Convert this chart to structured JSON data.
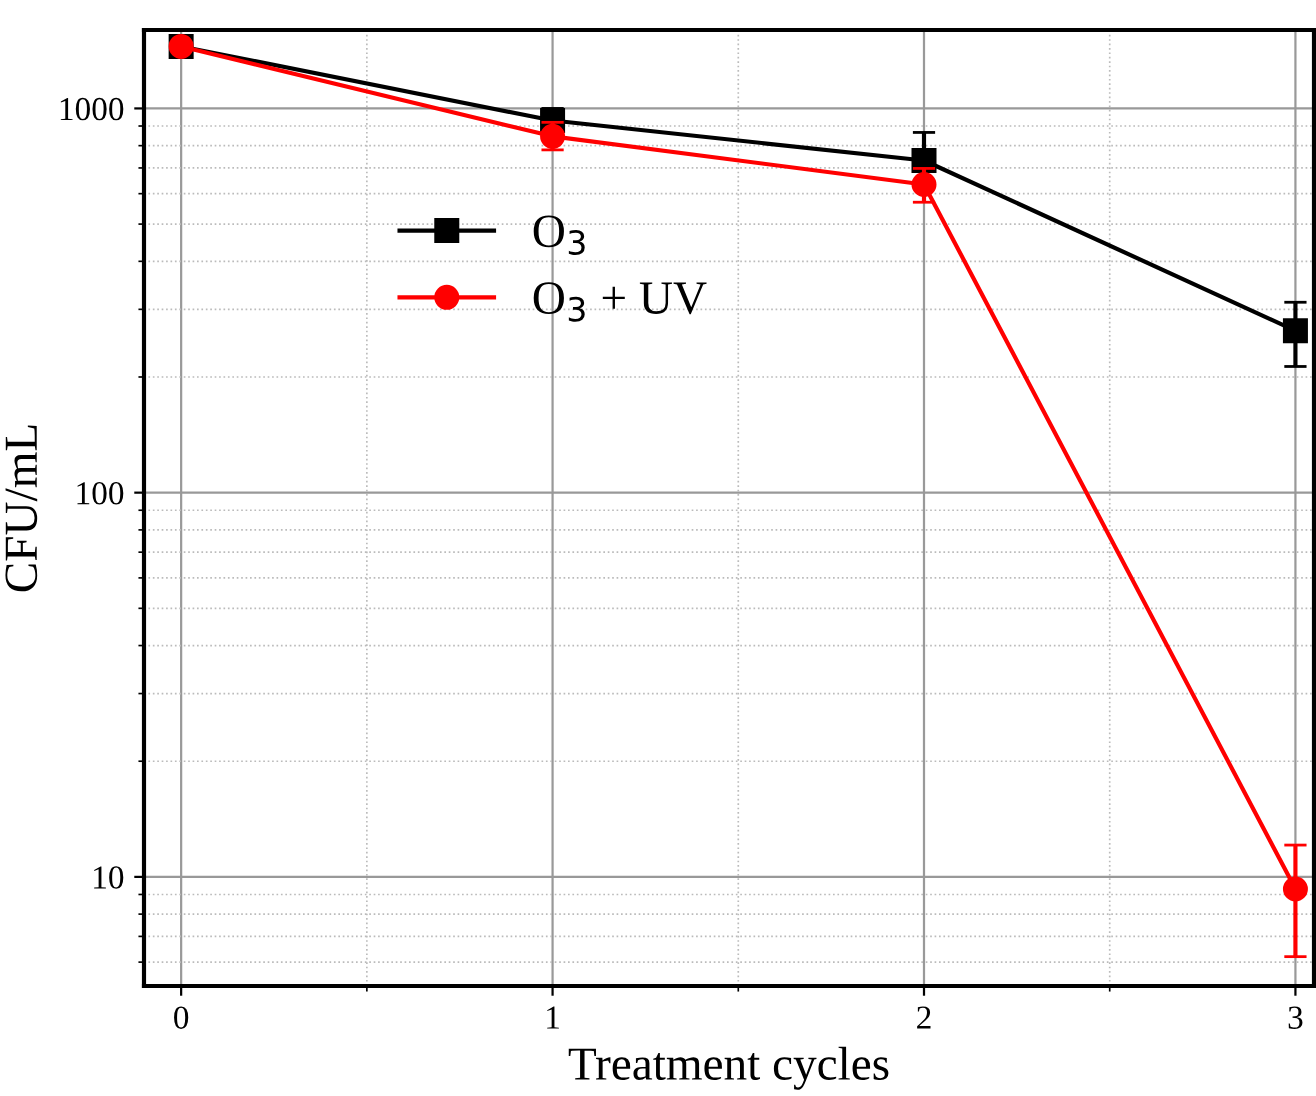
{
  "chart_data": {
    "type": "line",
    "xlabel": "Treatment cycles",
    "ylabel": "CFU/mL",
    "x": [
      0,
      1,
      2,
      3
    ],
    "series": [
      {
        "name": "O$_{3}$",
        "color": "#000000",
        "marker": "square",
        "values": [
          1450,
          930,
          732,
          264
        ],
        "errors": [
          null,
          [
            870,
            1000
          ],
          [
            732,
            866
          ],
          [
            213,
            313
          ]
        ]
      },
      {
        "name": "O$_{3}$ + UV",
        "color": "#ff0000",
        "marker": "circle",
        "values": [
          1450,
          846,
          634,
          9.3
        ],
        "errors": [
          null,
          [
            780,
            920
          ],
          [
            570,
            698
          ],
          [
            6.2,
            12.1
          ]
        ]
      }
    ],
    "log": "y",
    "xlim": [
      -0.1,
      3.05
    ],
    "ylim": [
      5.2,
      1600
    ],
    "xticks": [
      0,
      1,
      2,
      3
    ],
    "yticks": [
      10,
      100,
      1000
    ],
    "grid": true,
    "legend": "center",
    "line_style": "solid"
  }
}
